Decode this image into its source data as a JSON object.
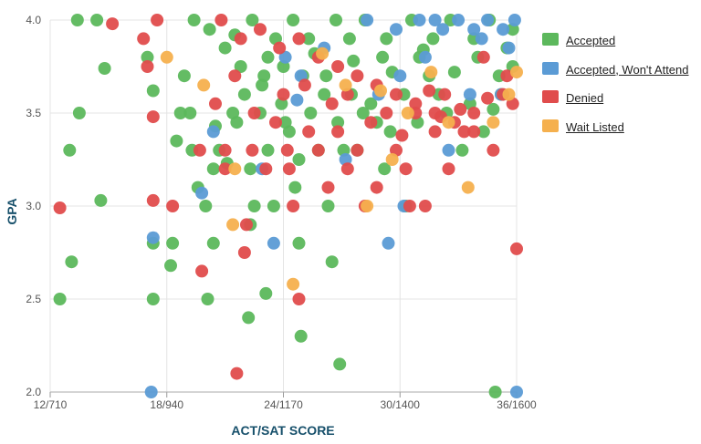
{
  "chart_data": {
    "type": "scatter",
    "xlabel": "ACT/SAT SCORE",
    "ylabel": "GPA",
    "x_range": [
      12,
      36
    ],
    "y_range": [
      2.0,
      4.0
    ],
    "x_ticks": [
      12,
      18,
      24,
      30,
      36
    ],
    "x_tick_labels": [
      "12/710",
      "18/940",
      "24/1170",
      "30/1400",
      "36/1600"
    ],
    "y_ticks": [
      2.0,
      2.5,
      3.0,
      3.5,
      4.0
    ],
    "y_tick_labels": [
      "2.0",
      "2.5",
      "3.0",
      "3.5",
      "4.0"
    ],
    "grid": true,
    "legend_position": "right",
    "series": [
      {
        "name": "Accepted",
        "color": "#5cb85c",
        "points": [
          [
            13.4,
            4.0
          ],
          [
            14.4,
            4.0
          ],
          [
            17.0,
            3.8
          ],
          [
            17.3,
            3.62
          ],
          [
            14.8,
            3.74
          ],
          [
            13.5,
            3.5
          ],
          [
            13.0,
            3.3
          ],
          [
            14.6,
            3.03
          ],
          [
            13.1,
            2.7
          ],
          [
            12.5,
            2.5
          ],
          [
            17.3,
            2.8
          ],
          [
            17.3,
            2.5
          ],
          [
            18.3,
            2.8
          ],
          [
            18.2,
            2.68
          ],
          [
            18.9,
            3.7
          ],
          [
            18.5,
            3.35
          ],
          [
            18.7,
            3.5
          ],
          [
            19.2,
            3.5
          ],
          [
            19.3,
            3.3
          ],
          [
            20.4,
            3.2
          ],
          [
            20.5,
            3.43
          ],
          [
            20.7,
            3.3
          ],
          [
            21.0,
            3.85
          ],
          [
            20.4,
            2.8
          ],
          [
            20.1,
            2.5
          ],
          [
            21.4,
            3.5
          ],
          [
            21.8,
            3.75
          ],
          [
            22.0,
            3.6
          ],
          [
            22.3,
            3.2
          ],
          [
            22.5,
            3.0
          ],
          [
            22.3,
            2.9
          ],
          [
            22.2,
            2.4
          ],
          [
            22.8,
            3.5
          ],
          [
            23.0,
            3.7
          ],
          [
            23.2,
            3.3
          ],
          [
            23.5,
            3.0
          ],
          [
            23.1,
            2.53
          ],
          [
            24.3,
            3.4
          ],
          [
            24.6,
            3.1
          ],
          [
            24.8,
            3.25
          ],
          [
            24.8,
            2.8
          ],
          [
            24.9,
            2.3
          ],
          [
            25.0,
            3.7
          ],
          [
            25.4,
            3.5
          ],
          [
            25.8,
            3.3
          ],
          [
            26.3,
            3.0
          ],
          [
            26.5,
            2.7
          ],
          [
            26.9,
            2.15
          ],
          [
            27.1,
            3.3
          ],
          [
            27.5,
            3.6
          ],
          [
            28.1,
            3.5
          ],
          [
            28.8,
            3.45
          ],
          [
            29.2,
            3.2
          ],
          [
            29.5,
            3.4
          ],
          [
            30.2,
            3.6
          ],
          [
            30.3,
            3.0
          ],
          [
            31.0,
            3.8
          ],
          [
            31.5,
            3.7
          ],
          [
            32.4,
            3.5
          ],
          [
            33.2,
            3.3
          ],
          [
            34.3,
            3.4
          ],
          [
            35.1,
            3.7
          ],
          [
            34.8,
            3.52
          ],
          [
            34.9,
            2.0
          ],
          [
            35.5,
            3.85
          ],
          [
            20.0,
            3.0
          ],
          [
            19.6,
            3.1
          ],
          [
            21.1,
            3.23
          ],
          [
            22.9,
            3.65
          ],
          [
            23.9,
            3.55
          ],
          [
            26.1,
            3.6
          ],
          [
            27.8,
            3.3
          ],
          [
            28.5,
            3.55
          ],
          [
            29.1,
            3.8
          ],
          [
            30.9,
            3.45
          ],
          [
            32.0,
            3.6
          ],
          [
            33.6,
            3.55
          ],
          [
            19.4,
            4.0
          ],
          [
            20.2,
            3.95
          ],
          [
            21.5,
            3.92
          ],
          [
            22.4,
            4.0
          ],
          [
            23.6,
            3.9
          ],
          [
            24.5,
            4.0
          ],
          [
            25.3,
            3.9
          ],
          [
            26.7,
            4.0
          ],
          [
            27.4,
            3.9
          ],
          [
            28.2,
            4.0
          ],
          [
            29.3,
            3.9
          ],
          [
            30.6,
            4.0
          ],
          [
            31.7,
            3.9
          ],
          [
            32.6,
            4.0
          ],
          [
            33.8,
            3.9
          ],
          [
            34.6,
            4.0
          ],
          [
            35.8,
            3.95
          ],
          [
            23.2,
            3.8
          ],
          [
            24.0,
            3.75
          ],
          [
            25.6,
            3.82
          ],
          [
            26.2,
            3.7
          ],
          [
            27.6,
            3.78
          ],
          [
            29.6,
            3.72
          ],
          [
            31.2,
            3.84
          ],
          [
            32.8,
            3.72
          ],
          [
            34.0,
            3.8
          ],
          [
            35.2,
            3.6
          ],
          [
            35.8,
            3.75
          ],
          [
            21.6,
            3.45
          ],
          [
            24.1,
            3.45
          ],
          [
            26.8,
            3.45
          ]
        ]
      },
      {
        "name": "Accepted, Won't Attend",
        "color": "#5b9bd5",
        "points": [
          [
            17.2,
            2.0
          ],
          [
            17.3,
            2.83
          ],
          [
            19.8,
            3.07
          ],
          [
            20.4,
            3.4
          ],
          [
            22.9,
            3.2
          ],
          [
            23.5,
            2.8
          ],
          [
            24.7,
            3.57
          ],
          [
            24.9,
            3.7
          ],
          [
            26.1,
            3.85
          ],
          [
            27.2,
            3.25
          ],
          [
            29.4,
            2.8
          ],
          [
            30.2,
            3.0
          ],
          [
            31.3,
            3.8
          ],
          [
            32.5,
            3.3
          ],
          [
            33.6,
            3.6
          ],
          [
            35.2,
            3.6
          ],
          [
            36.0,
            2.0
          ],
          [
            28.3,
            4.0
          ],
          [
            29.8,
            3.95
          ],
          [
            31.0,
            4.0
          ],
          [
            32.2,
            3.95
          ],
          [
            33.0,
            4.0
          ],
          [
            33.8,
            3.95
          ],
          [
            34.5,
            4.0
          ],
          [
            35.3,
            3.95
          ],
          [
            35.9,
            4.0
          ],
          [
            31.8,
            4.0
          ],
          [
            34.2,
            3.9
          ],
          [
            35.6,
            3.85
          ],
          [
            30.0,
            3.7
          ],
          [
            28.9,
            3.6
          ],
          [
            24.1,
            3.8
          ]
        ]
      },
      {
        "name": "Denied",
        "color": "#e04c4c",
        "points": [
          [
            12.5,
            2.99
          ],
          [
            15.2,
            3.98
          ],
          [
            17.5,
            4.0
          ],
          [
            16.8,
            3.9
          ],
          [
            17.0,
            3.75
          ],
          [
            17.3,
            3.48
          ],
          [
            17.3,
            3.03
          ],
          [
            18.3,
            3.0
          ],
          [
            19.7,
            3.3
          ],
          [
            19.8,
            2.65
          ],
          [
            20.5,
            3.55
          ],
          [
            21.0,
            3.3
          ],
          [
            21.0,
            3.2
          ],
          [
            21.5,
            3.7
          ],
          [
            21.6,
            2.1
          ],
          [
            22.1,
            2.9
          ],
          [
            22.5,
            3.5
          ],
          [
            22.4,
            3.3
          ],
          [
            22.0,
            2.75
          ],
          [
            23.1,
            3.2
          ],
          [
            23.6,
            3.45
          ],
          [
            24.0,
            3.6
          ],
          [
            24.3,
            3.2
          ],
          [
            24.5,
            3.0
          ],
          [
            24.8,
            2.5
          ],
          [
            25.3,
            3.4
          ],
          [
            25.8,
            3.3
          ],
          [
            26.3,
            3.1
          ],
          [
            26.8,
            3.4
          ],
          [
            27.3,
            3.2
          ],
          [
            27.8,
            3.3
          ],
          [
            28.2,
            3.0
          ],
          [
            28.8,
            3.1
          ],
          [
            29.3,
            3.5
          ],
          [
            29.8,
            3.3
          ],
          [
            30.3,
            3.2
          ],
          [
            30.8,
            3.5
          ],
          [
            31.3,
            3.0
          ],
          [
            31.8,
            3.4
          ],
          [
            32.3,
            3.6
          ],
          [
            32.5,
            3.2
          ],
          [
            33.3,
            3.4
          ],
          [
            33.8,
            3.5
          ],
          [
            34.3,
            3.8
          ],
          [
            34.8,
            3.3
          ],
          [
            35.3,
            3.6
          ],
          [
            35.8,
            3.55
          ],
          [
            36.0,
            2.77
          ],
          [
            20.8,
            4.0
          ],
          [
            21.8,
            3.9
          ],
          [
            22.8,
            3.95
          ],
          [
            23.8,
            3.85
          ],
          [
            24.8,
            3.9
          ],
          [
            25.8,
            3.8
          ],
          [
            26.8,
            3.75
          ],
          [
            27.8,
            3.7
          ],
          [
            28.8,
            3.65
          ],
          [
            29.8,
            3.6
          ],
          [
            30.8,
            3.55
          ],
          [
            31.8,
            3.5
          ],
          [
            32.8,
            3.45
          ],
          [
            33.8,
            3.4
          ],
          [
            25.1,
            3.65
          ],
          [
            26.5,
            3.55
          ],
          [
            27.3,
            3.6
          ],
          [
            28.5,
            3.45
          ],
          [
            30.1,
            3.38
          ],
          [
            31.5,
            3.62
          ],
          [
            32.1,
            3.48
          ],
          [
            33.1,
            3.52
          ],
          [
            34.5,
            3.58
          ],
          [
            35.5,
            3.7
          ],
          [
            30.5,
            3.0
          ],
          [
            24.2,
            3.3
          ]
        ]
      },
      {
        "name": "Wait Listed",
        "color": "#f5b04e",
        "points": [
          [
            18.0,
            3.8
          ],
          [
            19.9,
            3.65
          ],
          [
            21.5,
            3.2
          ],
          [
            21.4,
            2.9
          ],
          [
            24.5,
            2.58
          ],
          [
            26.0,
            3.82
          ],
          [
            27.2,
            3.65
          ],
          [
            28.3,
            3.0
          ],
          [
            29.0,
            3.62
          ],
          [
            30.4,
            3.5
          ],
          [
            31.6,
            3.72
          ],
          [
            32.5,
            3.45
          ],
          [
            33.5,
            3.1
          ],
          [
            34.8,
            3.45
          ],
          [
            35.6,
            3.6
          ],
          [
            36.0,
            3.72
          ],
          [
            29.6,
            3.25
          ]
        ]
      }
    ]
  },
  "legend": {
    "items": [
      {
        "label": "Accepted",
        "color": "#5cb85c"
      },
      {
        "label": "Accepted, Won't Attend",
        "color": "#5b9bd5"
      },
      {
        "label": "Denied",
        "color": "#e04c4c"
      },
      {
        "label": "Wait Listed",
        "color": "#f5b04e"
      }
    ]
  }
}
